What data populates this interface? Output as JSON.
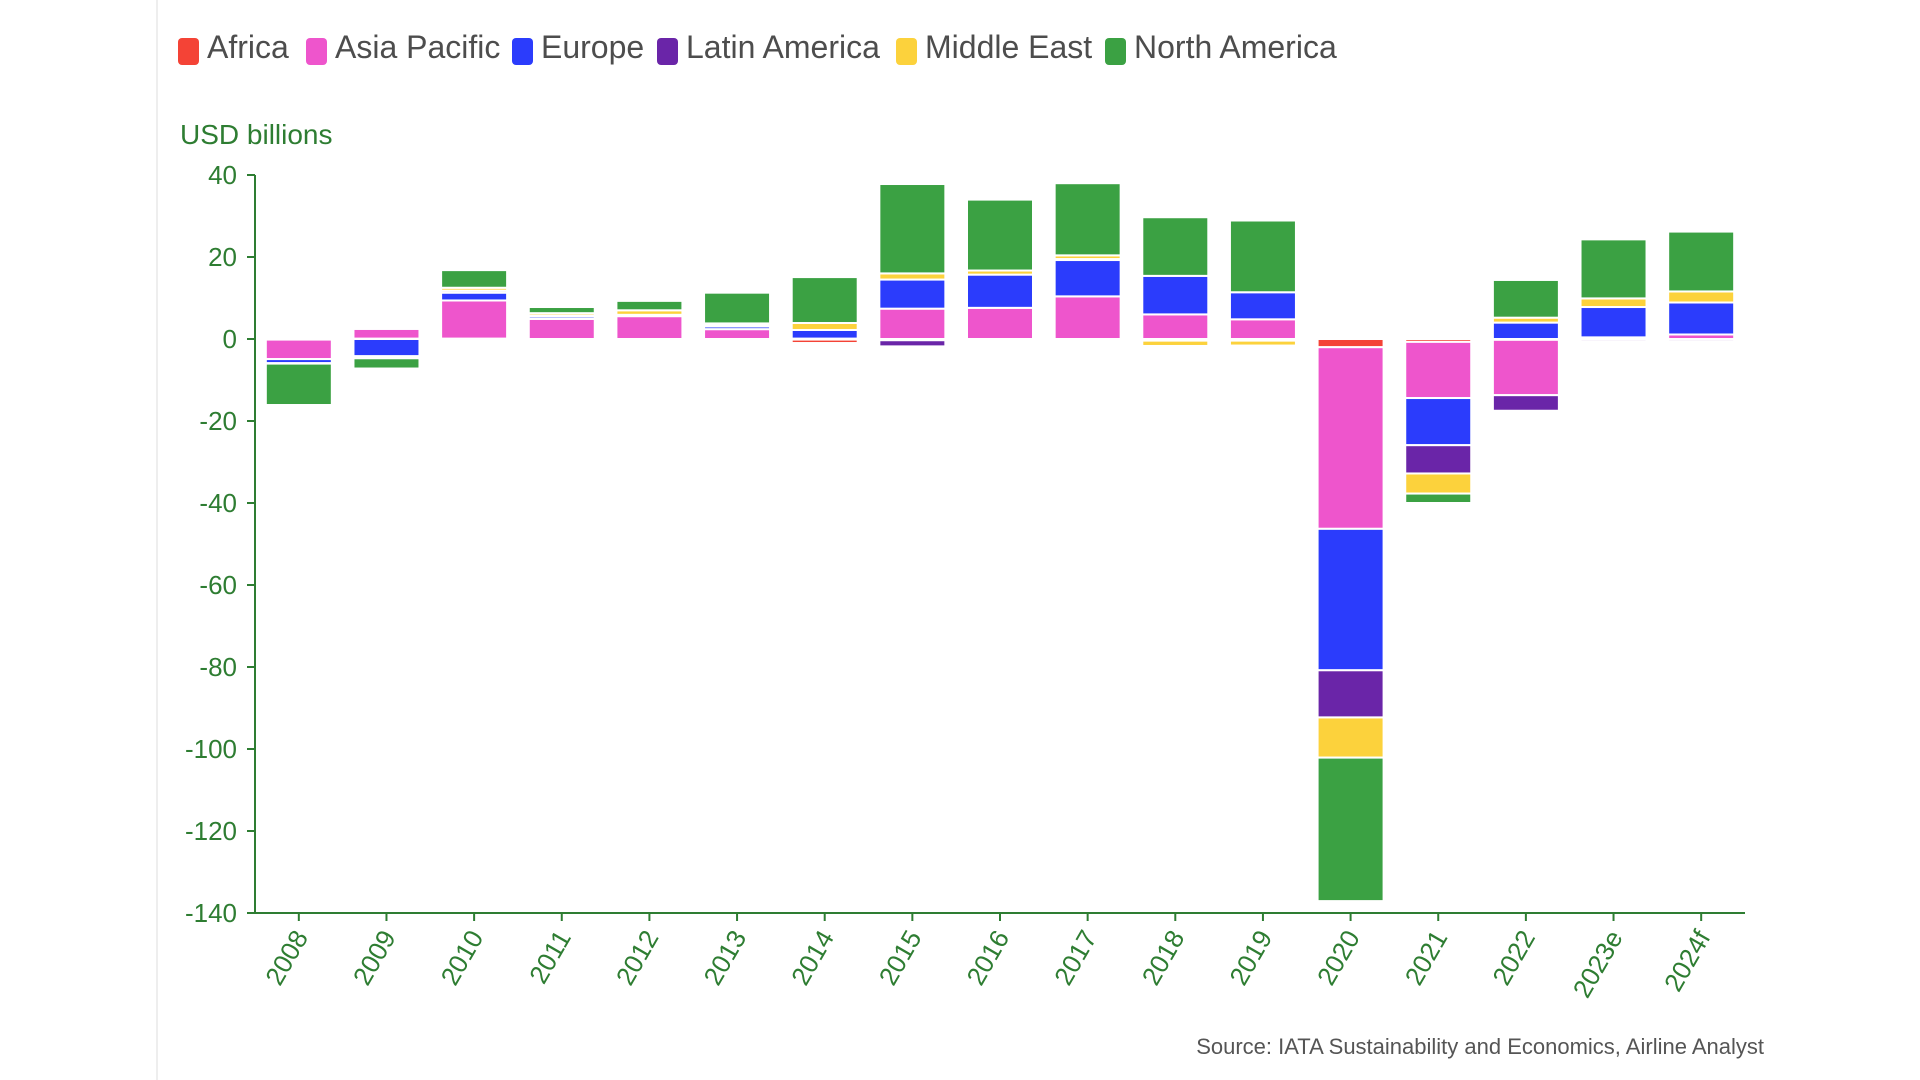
{
  "chart_data": {
    "type": "bar",
    "stacked": true,
    "ylabel": "USD billions",
    "xlabel": "",
    "ylim": [
      -140,
      40
    ],
    "yticks": [
      40,
      20,
      0,
      -20,
      -40,
      -60,
      -80,
      -100,
      -120,
      -140
    ],
    "categories": [
      "2008",
      "2009",
      "2010",
      "2011",
      "2012",
      "2013",
      "2014",
      "2015",
      "2016",
      "2017",
      "2018",
      "2019",
      "2020",
      "2021",
      "2022",
      "2023e",
      "2024f"
    ],
    "legend_position": "top-left",
    "series": [
      {
        "name": "Africa",
        "color": "#f44336",
        "values": [
          -0.1,
          0.1,
          0.1,
          -0.1,
          -0.1,
          -0.1,
          -1.0,
          -0.3,
          -0.1,
          -0.1,
          -0.1,
          -0.2,
          -2.0,
          -0.7,
          -0.2,
          -0.2,
          -0.1
        ]
      },
      {
        "name": "Asia Pacific",
        "color": "#ee55cc",
        "values": [
          -4.8,
          2.4,
          9.3,
          4.9,
          5.6,
          2.4,
          0.1,
          7.4,
          7.6,
          10.4,
          6.0,
          4.8,
          -44.3,
          -13.7,
          -13.5,
          0.4,
          1.1
        ]
      },
      {
        "name": "Europe",
        "color": "#2b3cfc",
        "values": [
          -1.0,
          -4.2,
          1.9,
          0.6,
          0.2,
          0.8,
          2.1,
          7.1,
          8.1,
          9.0,
          9.4,
          6.6,
          -34.5,
          -11.5,
          4.0,
          7.4,
          7.8
        ]
      },
      {
        "name": "Latin America",
        "color": "#6a25a8",
        "values": [
          -0.1,
          0.2,
          0.5,
          0.2,
          0.1,
          0.1,
          -0.2,
          -1.5,
          -0.1,
          0.1,
          -0.3,
          -0.2,
          -11.5,
          -6.9,
          -3.8,
          -0.5,
          -0.5
        ]
      },
      {
        "name": "Middle East",
        "color": "#fcd23c",
        "values": [
          0.1,
          -0.5,
          0.7,
          0.6,
          1.1,
          0.5,
          1.7,
          1.5,
          1.0,
          0.9,
          -1.3,
          -1.2,
          -9.8,
          -4.9,
          1.2,
          2.1,
          2.7
        ]
      },
      {
        "name": "North America",
        "color": "#3ba143",
        "values": [
          -10.1,
          -2.5,
          4.3,
          1.5,
          2.3,
          7.5,
          11.2,
          21.8,
          17.3,
          17.6,
          14.3,
          17.5,
          -35.0,
          -2.3,
          9.2,
          14.4,
          14.6
        ]
      }
    ],
    "source": "Source: IATA Sustainability and Economics, Airline Analyst"
  }
}
